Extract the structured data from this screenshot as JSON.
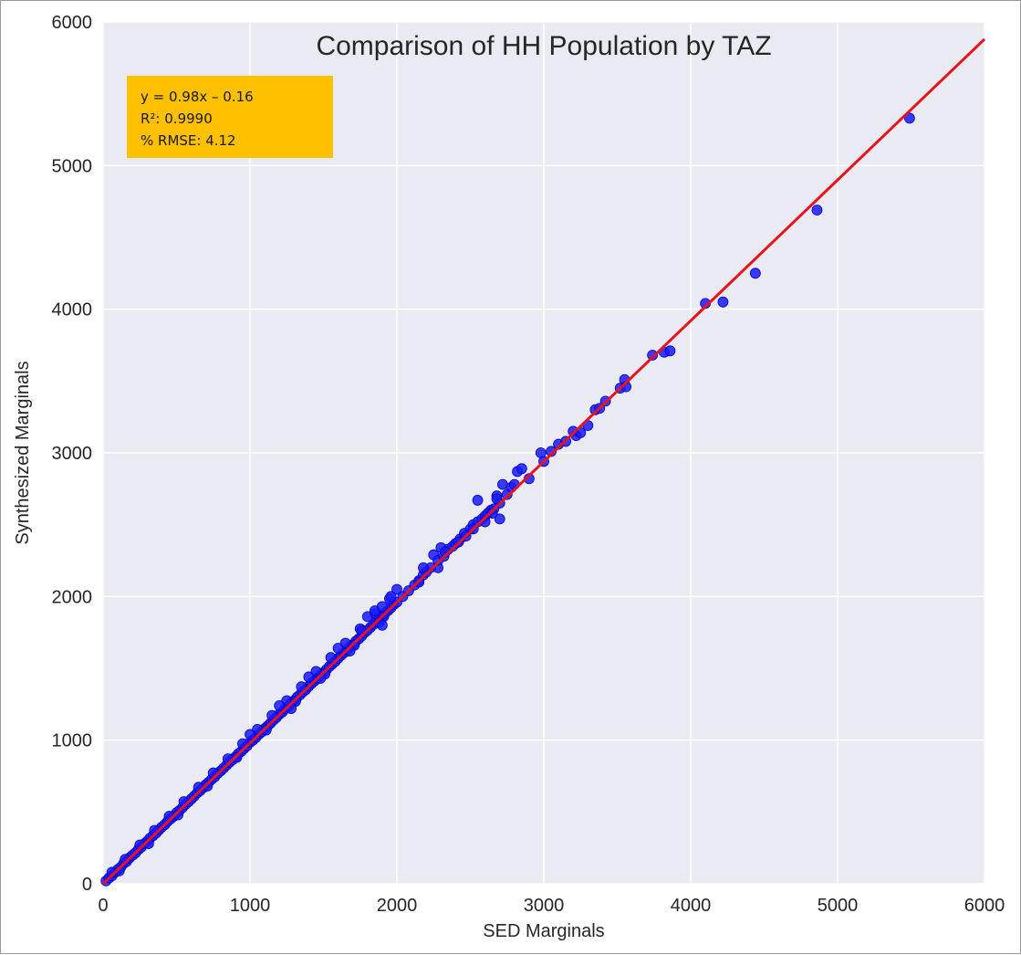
{
  "chart_data": {
    "type": "scatter",
    "title": "Comparison of HH Population by TAZ",
    "xlabel": "SED Marginals",
    "ylabel": "Synthesized Marginals",
    "xlim": [
      0,
      6000
    ],
    "ylim": [
      0,
      6000
    ],
    "xticks": [
      "0",
      "1000",
      "2000",
      "3000",
      "4000",
      "5000",
      "6000"
    ],
    "yticks": [
      "0",
      "1000",
      "2000",
      "3000",
      "4000",
      "5000",
      "6000"
    ],
    "grid": true,
    "point_color": "#1a1aff",
    "fit_color": "#e8141c",
    "annotation_bg": "#ffc000",
    "annotation": {
      "equation": "y = 0.98x – 0.16",
      "r2": "R²: 0.9990",
      "rmse": "% RMSE: 4.12"
    },
    "fit_line": {
      "slope": 0.98,
      "intercept": -0.16
    },
    "series": [
      {
        "points": [
          [
            20,
            20
          ],
          [
            40,
            40
          ],
          [
            60,
            55
          ],
          [
            80,
            78
          ],
          [
            100,
            100
          ],
          [
            120,
            115
          ],
          [
            140,
            142
          ],
          [
            160,
            155
          ],
          [
            180,
            180
          ],
          [
            200,
            198
          ],
          [
            220,
            215
          ],
          [
            240,
            238
          ],
          [
            260,
            255
          ],
          [
            280,
            278
          ],
          [
            300,
            295
          ],
          [
            320,
            318
          ],
          [
            340,
            335
          ],
          [
            360,
            352
          ],
          [
            380,
            375
          ],
          [
            400,
            395
          ],
          [
            420,
            412
          ],
          [
            440,
            435
          ],
          [
            460,
            452
          ],
          [
            480,
            470
          ],
          [
            500,
            495
          ],
          [
            520,
            510
          ],
          [
            540,
            530
          ],
          [
            560,
            552
          ],
          [
            580,
            570
          ],
          [
            600,
            590
          ],
          [
            620,
            610
          ],
          [
            640,
            632
          ],
          [
            660,
            648
          ],
          [
            680,
            668
          ],
          [
            700,
            690
          ],
          [
            720,
            708
          ],
          [
            740,
            728
          ],
          [
            760,
            745
          ],
          [
            780,
            768
          ],
          [
            800,
            785
          ],
          [
            820,
            805
          ],
          [
            840,
            825
          ],
          [
            860,
            845
          ],
          [
            880,
            862
          ],
          [
            900,
            882
          ],
          [
            920,
            905
          ],
          [
            940,
            920
          ],
          [
            960,
            942
          ],
          [
            980,
            960
          ],
          [
            1000,
            985
          ],
          [
            1020,
            1000
          ],
          [
            1040,
            1018
          ],
          [
            1060,
            1040
          ],
          [
            1080,
            1058
          ],
          [
            1100,
            1080
          ],
          [
            1120,
            1098
          ],
          [
            1140,
            1118
          ],
          [
            1160,
            1140
          ],
          [
            1180,
            1158
          ],
          [
            1200,
            1180
          ],
          [
            1220,
            1195
          ],
          [
            1240,
            1218
          ],
          [
            1260,
            1235
          ],
          [
            1280,
            1258
          ],
          [
            1300,
            1275
          ],
          [
            1320,
            1298
          ],
          [
            1340,
            1315
          ],
          [
            1360,
            1335
          ],
          [
            1380,
            1352
          ],
          [
            1400,
            1375
          ],
          [
            1420,
            1395
          ],
          [
            1440,
            1412
          ],
          [
            1460,
            1432
          ],
          [
            1480,
            1455
          ],
          [
            1500,
            1470
          ],
          [
            1520,
            1490
          ],
          [
            1540,
            1512
          ],
          [
            1560,
            1530
          ],
          [
            1580,
            1548
          ],
          [
            1600,
            1570
          ],
          [
            1620,
            1590
          ],
          [
            1640,
            1608
          ],
          [
            1660,
            1628
          ],
          [
            1680,
            1650
          ],
          [
            1700,
            1665
          ],
          [
            1720,
            1688
          ],
          [
            1740,
            1705
          ],
          [
            1760,
            1725
          ],
          [
            1780,
            1748
          ],
          [
            1800,
            1765
          ],
          [
            1820,
            1785
          ],
          [
            1840,
            1805
          ],
          [
            1860,
            1825
          ],
          [
            1880,
            1845
          ],
          [
            1900,
            1862
          ],
          [
            1920,
            1885
          ],
          [
            1940,
            1902
          ],
          [
            1960,
            1922
          ],
          [
            1980,
            1945
          ],
          [
            2000,
            1960
          ],
          [
            60,
            80
          ],
          [
            150,
            170
          ],
          [
            250,
            270
          ],
          [
            350,
            372
          ],
          [
            450,
            470
          ],
          [
            550,
            572
          ],
          [
            650,
            672
          ],
          [
            750,
            772
          ],
          [
            850,
            870
          ],
          [
            950,
            975
          ],
          [
            1050,
            1075
          ],
          [
            1150,
            1172
          ],
          [
            1250,
            1275
          ],
          [
            1350,
            1372
          ],
          [
            1450,
            1478
          ],
          [
            1550,
            1575
          ],
          [
            1650,
            1675
          ],
          [
            1750,
            1775
          ],
          [
            1850,
            1880
          ],
          [
            1950,
            1985
          ],
          [
            1000,
            1040
          ],
          [
            1200,
            1240
          ],
          [
            1400,
            1440
          ],
          [
            1600,
            1640
          ],
          [
            1760,
            1760
          ],
          [
            1800,
            1860
          ],
          [
            1850,
            1900
          ],
          [
            1900,
            1930
          ],
          [
            1960,
            2000
          ],
          [
            2000,
            2050
          ],
          [
            110,
            90
          ],
          [
            310,
            280
          ],
          [
            510,
            480
          ],
          [
            710,
            680
          ],
          [
            910,
            880
          ],
          [
            1110,
            1070
          ],
          [
            1310,
            1270
          ],
          [
            1510,
            1460
          ],
          [
            1710,
            1660
          ],
          [
            1910,
            1860
          ],
          [
            1280,
            1220
          ],
          [
            1480,
            1430
          ],
          [
            1680,
            1620
          ],
          [
            1880,
            1820
          ],
          [
            1900,
            1800
          ],
          [
            2040,
            2000
          ],
          [
            2080,
            2040
          ],
          [
            2120,
            2080
          ],
          [
            2150,
            2110
          ],
          [
            2180,
            2150
          ],
          [
            2200,
            2170
          ],
          [
            2230,
            2200
          ],
          [
            2250,
            2290
          ],
          [
            2280,
            2250
          ],
          [
            2300,
            2340
          ],
          [
            2320,
            2280
          ],
          [
            2350,
            2330
          ],
          [
            2380,
            2350
          ],
          [
            2400,
            2370
          ],
          [
            2430,
            2400
          ],
          [
            2460,
            2440
          ],
          [
            2500,
            2470
          ],
          [
            2520,
            2500
          ],
          [
            2550,
            2520
          ],
          [
            2550,
            2670
          ],
          [
            2580,
            2540
          ],
          [
            2600,
            2560
          ],
          [
            2620,
            2580
          ],
          [
            2640,
            2600
          ],
          [
            2660,
            2610
          ],
          [
            2680,
            2700
          ],
          [
            2700,
            2650
          ],
          [
            2700,
            2540
          ],
          [
            2720,
            2780
          ],
          [
            2750,
            2710
          ],
          [
            2780,
            2760
          ],
          [
            2800,
            2780
          ],
          [
            2820,
            2870
          ],
          [
            2850,
            2890
          ],
          [
            2900,
            2820
          ],
          [
            2980,
            3000
          ],
          [
            3000,
            2940
          ],
          [
            3050,
            3010
          ],
          [
            3100,
            3060
          ],
          [
            3150,
            3080
          ],
          [
            3200,
            3150
          ],
          [
            3220,
            3120
          ],
          [
            3250,
            3140
          ],
          [
            3300,
            3190
          ],
          [
            3350,
            3300
          ],
          [
            3380,
            3310
          ],
          [
            3420,
            3360
          ],
          [
            3520,
            3450
          ],
          [
            3550,
            3510
          ],
          [
            3560,
            3460
          ],
          [
            2150,
            2100
          ],
          [
            2180,
            2200
          ],
          [
            2280,
            2200
          ],
          [
            2330,
            2310
          ],
          [
            2420,
            2380
          ],
          [
            2470,
            2420
          ],
          [
            2520,
            2470
          ],
          [
            2600,
            2520
          ],
          [
            2650,
            2580
          ],
          [
            2680,
            2680
          ],
          [
            3740,
            3680
          ],
          [
            3820,
            3700
          ],
          [
            3860,
            3710
          ],
          [
            4100,
            4040
          ],
          [
            4220,
            4050
          ],
          [
            4440,
            4250
          ],
          [
            4860,
            4690
          ],
          [
            5490,
            5330
          ]
        ]
      }
    ]
  }
}
